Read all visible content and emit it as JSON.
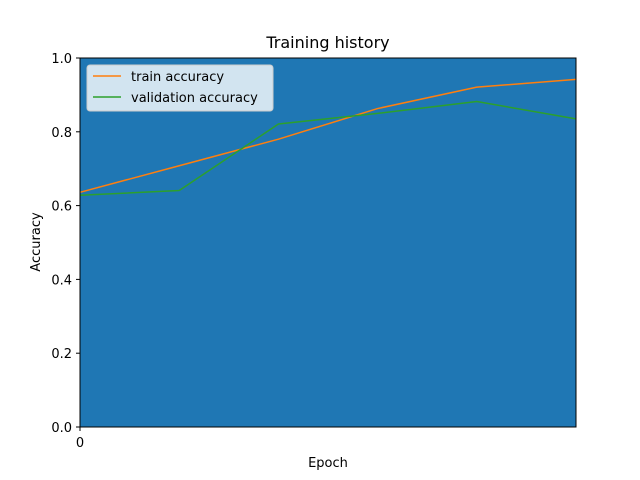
{
  "chart_data": {
    "type": "line",
    "title": "Training history",
    "xlabel": "Epoch",
    "ylabel": "Accuracy",
    "x": [
      0,
      1,
      2,
      3,
      4,
      5
    ],
    "xlim": [
      0,
      5
    ],
    "ylim": [
      0.0,
      1.0
    ],
    "x_ticks": [
      "0"
    ],
    "y_ticks": [
      "0.0",
      "0.2",
      "0.4",
      "0.6",
      "0.8",
      "1.0"
    ],
    "y_tick_values": [
      0.0,
      0.2,
      0.4,
      0.6,
      0.8,
      1.0
    ],
    "grid": false,
    "legend_position": "upper-left",
    "plot_background": "#1f77b4",
    "series": [
      {
        "name": "train accuracy",
        "color": "#ff7f0e",
        "values": [
          0.636,
          0.708,
          0.78,
          0.863,
          0.921,
          0.942
        ]
      },
      {
        "name": "validation accuracy",
        "color": "#2ca02c",
        "values": [
          0.628,
          0.641,
          0.821,
          0.85,
          0.882,
          0.835
        ]
      }
    ]
  }
}
